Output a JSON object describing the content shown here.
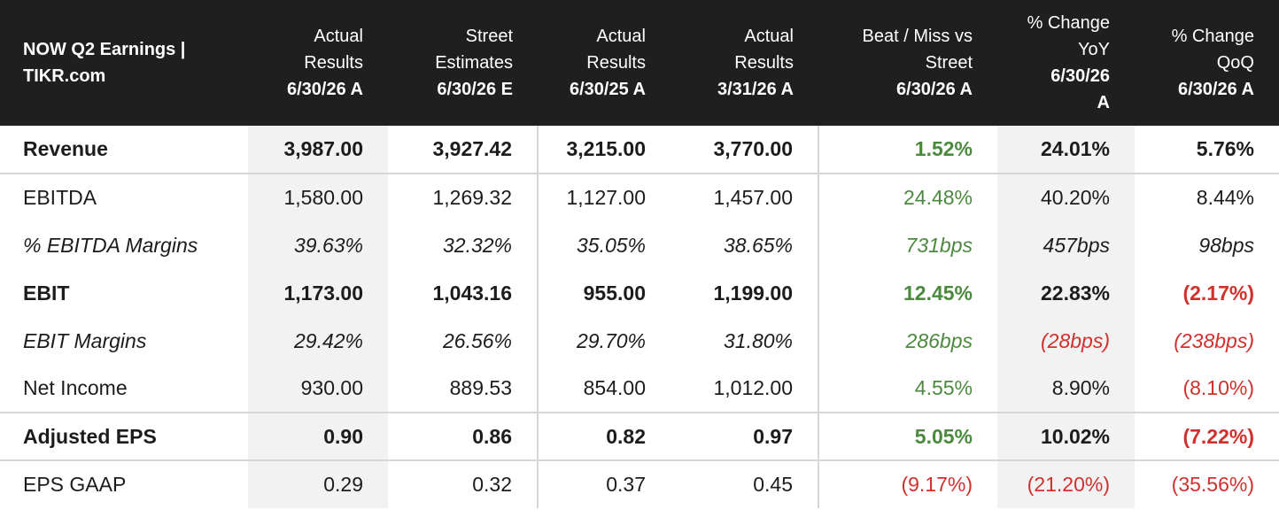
{
  "header": {
    "title": "NOW Q2 Earnings | TIKR.com",
    "columns": [
      {
        "l1": "Actual",
        "l2": "Results",
        "l3": "6/30/26 A"
      },
      {
        "l1": "Street",
        "l2": "Estimates",
        "l3": "6/30/26 E"
      },
      {
        "l1": "Actual",
        "l2": "Results",
        "l3": "6/30/25 A"
      },
      {
        "l1": "Actual",
        "l2": "Results",
        "l3": "3/31/26 A"
      },
      {
        "l1": "Beat / Miss vs",
        "l2": "Street",
        "l3": "6/30/26 A"
      },
      {
        "l1": "% Change",
        "l2": "YoY",
        "l3": "6/30/26",
        "l4": "A"
      },
      {
        "l1": "% Change",
        "l2": "QoQ",
        "l3": "6/30/26 A"
      }
    ]
  },
  "rows": [
    {
      "label": "Revenue",
      "v": [
        "3,987.00",
        "3,927.42",
        "3,215.00",
        "3,770.00",
        "1.52%",
        "24.01%",
        "5.76%"
      ]
    },
    {
      "label": "EBITDA",
      "v": [
        "1,580.00",
        "1,269.32",
        "1,127.00",
        "1,457.00",
        "24.48%",
        "40.20%",
        "8.44%"
      ]
    },
    {
      "label": "% EBITDA Margins",
      "v": [
        "39.63%",
        "32.32%",
        "35.05%",
        "38.65%",
        "731bps",
        "457bps",
        "98bps"
      ]
    },
    {
      "label": "EBIT",
      "v": [
        "1,173.00",
        "1,043.16",
        "955.00",
        "1,199.00",
        "12.45%",
        "22.83%",
        "(2.17%)"
      ]
    },
    {
      "label": "EBIT Margins",
      "v": [
        "29.42%",
        "26.56%",
        "29.70%",
        "31.80%",
        "286bps",
        "(28bps)",
        "(238bps)"
      ]
    },
    {
      "label": "Net Income",
      "v": [
        "930.00",
        "889.53",
        "854.00",
        "1,012.00",
        "4.55%",
        "8.90%",
        "(8.10%)"
      ]
    },
    {
      "label": "Adjusted EPS",
      "v": [
        "0.90",
        "0.86",
        "0.82",
        "0.97",
        "5.05%",
        "10.02%",
        "(7.22%)"
      ]
    },
    {
      "label": "EPS GAAP",
      "v": [
        "0.29",
        "0.32",
        "0.37",
        "0.45",
        "(9.17%)",
        "(21.20%)",
        "(35.56%)"
      ]
    }
  ],
  "colors": {
    "positive": "#4b8a3e",
    "negative": "#d0312d",
    "header_bg": "#1f1f1f",
    "shade": "#f2f2f2"
  }
}
